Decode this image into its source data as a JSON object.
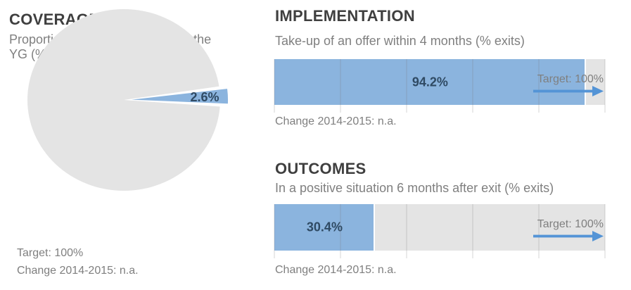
{
  "chart_data": [
    {
      "type": "pie",
      "title": "COVERAGE",
      "subtitle": "Proportion of NEETs reached by the YG (%)",
      "values": [
        2.6,
        97.4
      ],
      "data_label": "2.6%",
      "slice_colors": [
        "#8BB4DE",
        "#E4E4E4"
      ],
      "target_note": "Target: 100%",
      "change_note": "Change 2014-2015: n.a.",
      "legend": "none"
    },
    {
      "type": "bar",
      "title": "IMPLEMENTATION",
      "subtitle": "Take-up of an offer within 4 months (% exits)",
      "value": 94.2,
      "data_label": "94.2%",
      "xlim": [
        0,
        100
      ],
      "gridline_step": 20,
      "grid": "on",
      "target": 100,
      "target_label": "Target: 100%",
      "change_note": "Change 2014-2015: n.a."
    },
    {
      "type": "bar",
      "title": "OUTCOMES",
      "subtitle": "In a positive situation 6 months after exit (% exits)",
      "value": 30.4,
      "data_label": "30.4%",
      "xlim": [
        0,
        100
      ],
      "gridline_step": 20,
      "grid": "on",
      "target": 100,
      "target_label": "Target: 100%",
      "change_note": "Change 2014-2015: n.a."
    }
  ],
  "colors": {
    "bar_blue": "#8BB4DE",
    "arrow_blue": "#5494D6",
    "track_gray": "#E4E4E4",
    "heading_text": "#3F3F3F",
    "caption_text": "#7F7F7F",
    "value_text": "#2F4A63"
  }
}
